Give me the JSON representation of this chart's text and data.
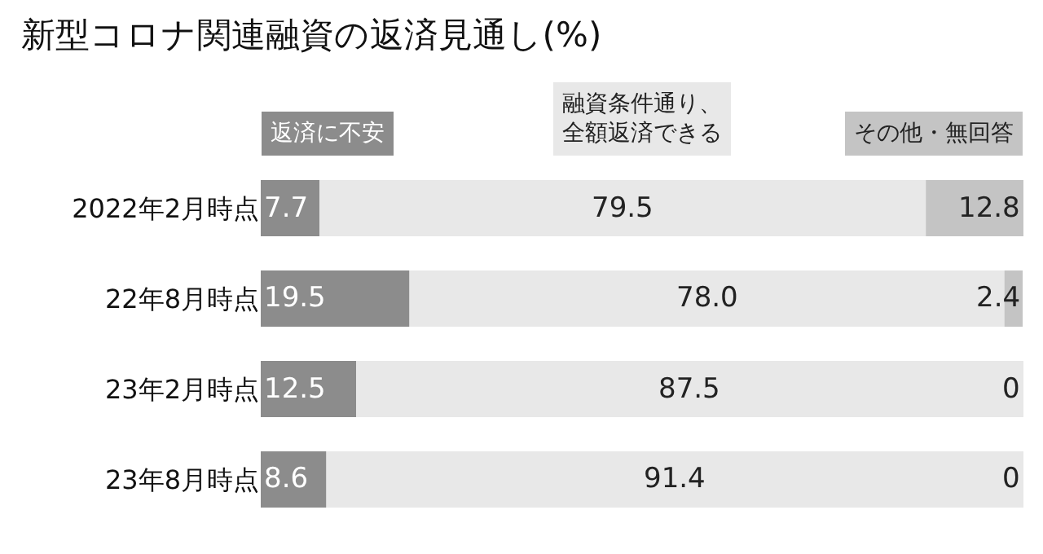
{
  "chart_data": {
    "type": "bar",
    "orientation": "horizontal",
    "stacked": true,
    "title": "新型コロナ関連融資の返済見通し(%)",
    "categories": [
      "2022年2月時点",
      "22年8月時点",
      "23年2月時点",
      "23年8月時点"
    ],
    "xlim": [
      0,
      100
    ],
    "legend": "top",
    "series": [
      {
        "name": "返済に不安",
        "color": "#8c8c8c",
        "values": [
          7.7,
          19.5,
          12.5,
          8.6
        ],
        "value_labels": [
          "7.7",
          "19.5",
          "12.5",
          "8.6"
        ]
      },
      {
        "name": "融資条件通り、全額返済できる",
        "color": "#e8e8e8",
        "values": [
          79.5,
          78.0,
          87.5,
          91.4
        ],
        "value_labels": [
          "79.5",
          "78.0",
          "87.5",
          "91.4"
        ]
      },
      {
        "name": "その他・無回答",
        "color": "#c4c4c4",
        "values": [
          12.8,
          2.4,
          0,
          0
        ],
        "value_labels": [
          "12.8",
          "2.4",
          "0",
          "0"
        ]
      }
    ]
  }
}
